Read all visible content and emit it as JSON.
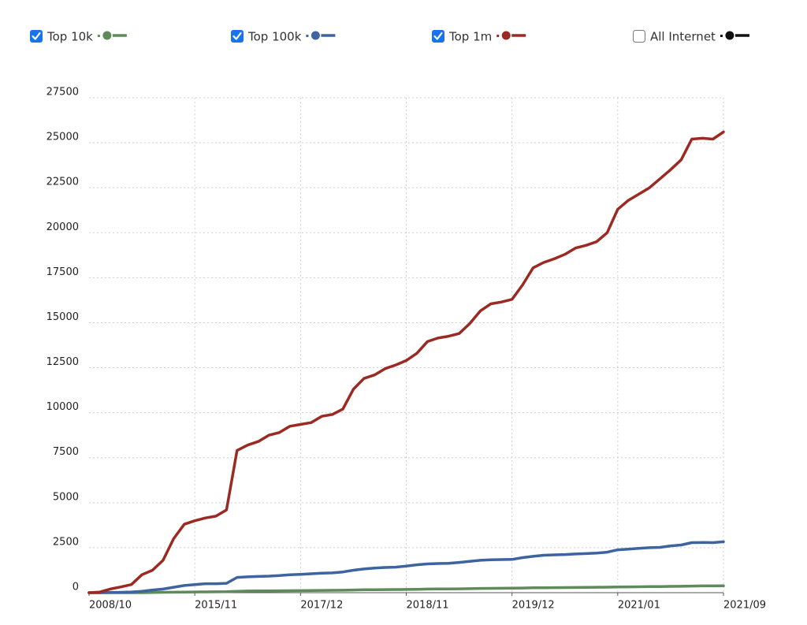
{
  "chart_data": {
    "type": "line",
    "categories": [
      "2008/10",
      null,
      null,
      null,
      null,
      null,
      null,
      null,
      null,
      null,
      "2015/11",
      null,
      null,
      null,
      null,
      null,
      null,
      null,
      null,
      null,
      "2017/12",
      null,
      null,
      null,
      null,
      null,
      null,
      null,
      null,
      null,
      "2018/11",
      null,
      null,
      null,
      null,
      null,
      null,
      null,
      null,
      null,
      "2019/12",
      null,
      null,
      null,
      null,
      null,
      null,
      null,
      null,
      null,
      "2021/01",
      null,
      null,
      null,
      null,
      null,
      null,
      null,
      null,
      null,
      "2021/09"
    ],
    "series": [
      {
        "name": "Top 10k",
        "color": "#5f8a5a",
        "checked": true,
        "values": [
          0,
          0,
          0,
          0,
          0,
          0,
          10,
          20,
          25,
          30,
          40,
          45,
          50,
          55,
          80,
          90,
          95,
          100,
          105,
          110,
          115,
          120,
          125,
          130,
          135,
          150,
          160,
          165,
          170,
          175,
          180,
          190,
          200,
          205,
          210,
          215,
          225,
          235,
          240,
          245,
          250,
          260,
          270,
          275,
          280,
          285,
          290,
          295,
          300,
          305,
          320,
          325,
          330,
          335,
          340,
          350,
          355,
          370,
          375,
          375,
          380
        ]
      },
      {
        "name": "Top 100k",
        "color": "#3d64a0",
        "checked": true,
        "values": [
          0,
          0,
          10,
          20,
          40,
          80,
          150,
          200,
          300,
          400,
          450,
          500,
          500,
          520,
          850,
          880,
          900,
          920,
          950,
          1000,
          1020,
          1050,
          1080,
          1100,
          1150,
          1250,
          1320,
          1370,
          1400,
          1420,
          1480,
          1550,
          1600,
          1620,
          1630,
          1680,
          1740,
          1800,
          1830,
          1840,
          1850,
          1950,
          2020,
          2080,
          2100,
          2120,
          2150,
          2170,
          2200,
          2250,
          2380,
          2420,
          2460,
          2500,
          2520,
          2600,
          2650,
          2780,
          2790,
          2780,
          2830
        ]
      },
      {
        "name": "Top 1m",
        "color": "#9b2a22",
        "checked": true,
        "values": [
          0,
          30,
          200,
          320,
          450,
          1000,
          1250,
          1800,
          3000,
          3800,
          4000,
          4150,
          4250,
          4600,
          7900,
          8200,
          8400,
          8750,
          8900,
          9250,
          9350,
          9450,
          9800,
          9900,
          10200,
          11300,
          11900,
          12100,
          12450,
          12650,
          12900,
          13300,
          13950,
          14150,
          14250,
          14400,
          14950,
          15650,
          16050,
          16150,
          16300,
          17100,
          18050,
          18350,
          18550,
          18800,
          19150,
          19300,
          19500,
          20000,
          21300,
          21800,
          22150,
          22500,
          23000,
          23500,
          24050,
          25200,
          25250,
          25200,
          25600
        ]
      },
      {
        "name": "All Internet",
        "color": "#111111",
        "checked": false
      }
    ],
    "ylim": [
      0,
      27500
    ],
    "yticks": [
      0,
      2500,
      5000,
      7500,
      10000,
      12500,
      15000,
      17500,
      20000,
      22500,
      25000,
      27500
    ],
    "grid": true
  }
}
